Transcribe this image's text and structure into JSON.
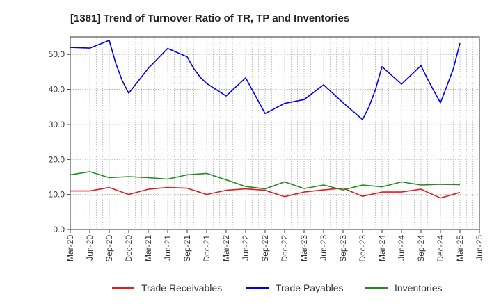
{
  "chart_data": {
    "type": "line",
    "title": "[1381]  Trend of Turnover Ratio of TR, TP and Inventories",
    "xlabel": "",
    "ylabel": "",
    "ylim": [
      0,
      55
    ],
    "y_ticks": [
      "0.0",
      "10.0",
      "20.0",
      "30.0",
      "40.0",
      "50.0"
    ],
    "x_tick_labels": [
      "Mar-20",
      "Jun-20",
      "Sep-20",
      "Dec-20",
      "Mar-21",
      "Jun-21",
      "Sep-21",
      "Dec-21",
      "Mar-22",
      "Jun-22",
      "Sep-22",
      "Dec-22",
      "Mar-23",
      "Jun-23",
      "Sep-23",
      "Dec-23",
      "Mar-24",
      "Jun-24",
      "Sep-24",
      "Dec-24",
      "Mar-25",
      "Jun-25"
    ],
    "grid": "dotted",
    "legend_position": "bottom",
    "x": [
      "Mar-20",
      "Jun-20",
      "Sep-20",
      "Oct-20",
      "Nov-20",
      "Dec-20",
      "Mar-21",
      "Jun-21",
      "Sep-21",
      "Oct-21",
      "Nov-21",
      "Dec-21",
      "Mar-22",
      "Jun-22",
      "Sep-22",
      "Dec-22",
      "Mar-23",
      "Jun-23",
      "Sep-23",
      "Dec-23",
      "Jan-24",
      "Feb-24",
      "Mar-24",
      "Jun-24",
      "Sep-24",
      "Oct-24",
      "Nov-24",
      "Dec-24",
      "Jan-25",
      "Feb-25",
      "Mar-25"
    ],
    "series": [
      {
        "name": "Trade Receivables",
        "color": "#e41a1c",
        "points": [
          [
            "Mar-20",
            11.0
          ],
          [
            "Jun-20",
            11.0
          ],
          [
            "Sep-20",
            12.0
          ],
          [
            "Dec-20",
            10.0
          ],
          [
            "Mar-21",
            11.5
          ],
          [
            "Jun-21",
            12.0
          ],
          [
            "Sep-21",
            11.8
          ],
          [
            "Dec-21",
            10.0
          ],
          [
            "Mar-22",
            11.2
          ],
          [
            "Jun-22",
            11.6
          ],
          [
            "Sep-22",
            11.2
          ],
          [
            "Dec-22",
            9.4
          ],
          [
            "Mar-23",
            10.7
          ],
          [
            "Jun-23",
            11.3
          ],
          [
            "Sep-23",
            11.8
          ],
          [
            "Dec-23",
            9.5
          ],
          [
            "Mar-24",
            10.7
          ],
          [
            "Jun-24",
            10.7
          ],
          [
            "Sep-24",
            11.5
          ],
          [
            "Dec-24",
            9.0
          ],
          [
            "Mar-25",
            10.6
          ]
        ]
      },
      {
        "name": "Trade Payables",
        "color": "#0000ee",
        "points": [
          [
            "Mar-20",
            52.0
          ],
          [
            "Jun-20",
            51.8
          ],
          [
            "Sep-20",
            54.0
          ],
          [
            "Oct-20",
            47.5
          ],
          [
            "Nov-20",
            42.5
          ],
          [
            "Dec-20",
            38.9
          ],
          [
            "Mar-21",
            46.0
          ],
          [
            "Jun-21",
            51.7
          ],
          [
            "Sep-21",
            49.3
          ],
          [
            "Oct-21",
            46.0
          ],
          [
            "Nov-21",
            43.5
          ],
          [
            "Dec-21",
            41.7
          ],
          [
            "Mar-22",
            38.1
          ],
          [
            "Jun-22",
            43.3
          ],
          [
            "Sep-22",
            33.1
          ],
          [
            "Dec-22",
            36.0
          ],
          [
            "Mar-23",
            37.1
          ],
          [
            "Jun-23",
            41.3
          ],
          [
            "Sep-23",
            36.2
          ],
          [
            "Dec-23",
            31.4
          ],
          [
            "Jan-24",
            35.0
          ],
          [
            "Feb-24",
            40.0
          ],
          [
            "Mar-24",
            46.5
          ],
          [
            "Jun-24",
            41.5
          ],
          [
            "Sep-24",
            46.8
          ],
          [
            "Oct-24",
            43.0
          ],
          [
            "Nov-24",
            39.5
          ],
          [
            "Dec-24",
            36.2
          ],
          [
            "Jan-25",
            41.0
          ],
          [
            "Feb-25",
            46.0
          ],
          [
            "Mar-25",
            53.2
          ]
        ]
      },
      {
        "name": "Inventories",
        "color": "#228b22",
        "points": [
          [
            "Mar-20",
            15.6
          ],
          [
            "Jun-20",
            16.5
          ],
          [
            "Sep-20",
            14.8
          ],
          [
            "Dec-20",
            15.1
          ],
          [
            "Mar-21",
            14.8
          ],
          [
            "Jun-21",
            14.4
          ],
          [
            "Sep-21",
            15.6
          ],
          [
            "Dec-21",
            16.0
          ],
          [
            "Mar-22",
            14.2
          ],
          [
            "Jun-22",
            12.3
          ],
          [
            "Sep-22",
            11.6
          ],
          [
            "Dec-22",
            13.6
          ],
          [
            "Mar-23",
            11.7
          ],
          [
            "Jun-23",
            12.7
          ],
          [
            "Sep-23",
            11.3
          ],
          [
            "Dec-23",
            12.7
          ],
          [
            "Mar-24",
            12.2
          ],
          [
            "Jun-24",
            13.6
          ],
          [
            "Sep-24",
            12.7
          ],
          [
            "Dec-24",
            12.9
          ],
          [
            "Mar-25",
            12.8
          ]
        ]
      }
    ]
  }
}
